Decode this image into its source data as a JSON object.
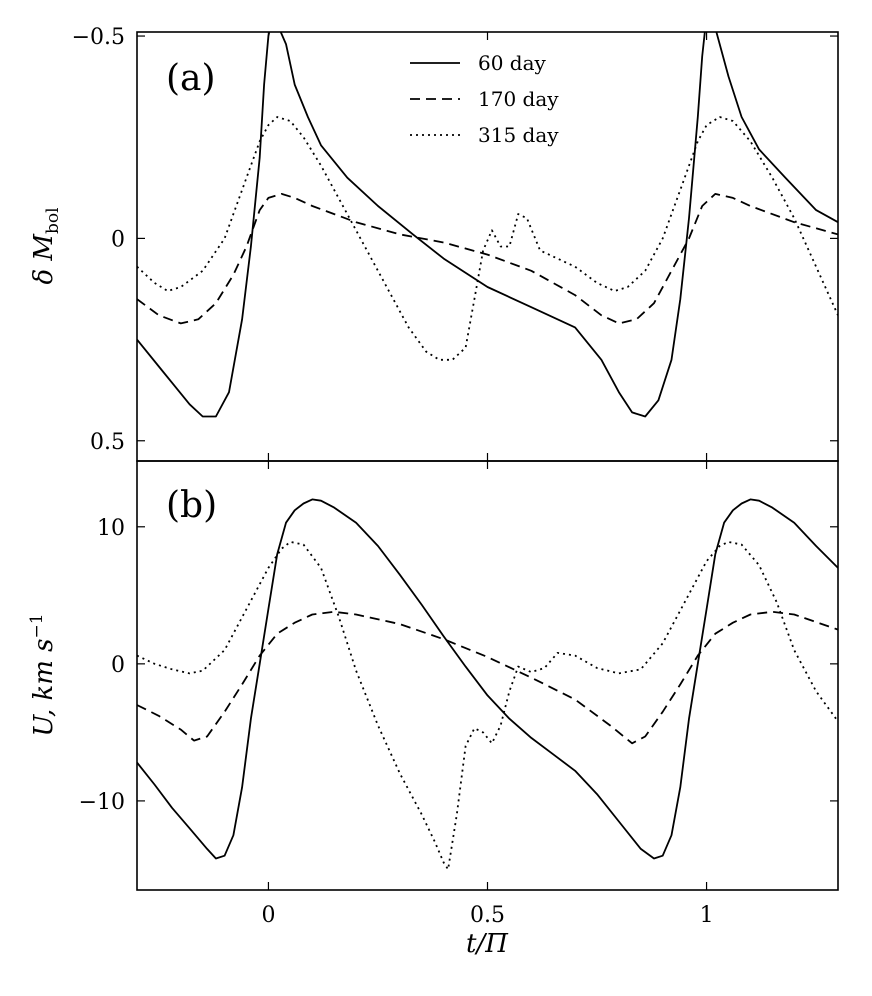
{
  "chart_data": [
    {
      "panel_label": "(a)",
      "type": "line",
      "ylabel_text": "δ M",
      "ylabel_sub": "bol",
      "xlim": [
        -0.3,
        1.3
      ],
      "ylim": [
        -0.51,
        0.55
      ],
      "y_inverted": true,
      "xticks": [
        0,
        0.5,
        1
      ],
      "xtick_labels": [
        "0",
        "0.5",
        "1"
      ],
      "yticks": [
        -0.5,
        0,
        0.5
      ],
      "ytick_labels": [
        "−0.5",
        "0",
        "0.5"
      ],
      "legend": {
        "position": "top-center",
        "entries": [
          "60 day",
          "170 day",
          "315 day"
        ]
      },
      "series": [
        {
          "name": "60 day",
          "style": "solid",
          "points": [
            [
              -0.3,
              0.25
            ],
            [
              -0.24,
              0.33
            ],
            [
              -0.18,
              0.41
            ],
            [
              -0.15,
              0.44
            ],
            [
              -0.12,
              0.44
            ],
            [
              -0.09,
              0.38
            ],
            [
              -0.06,
              0.2
            ],
            [
              -0.04,
              0.02
            ],
            [
              -0.02,
              -0.2
            ],
            [
              -0.01,
              -0.38
            ],
            [
              0.0,
              -0.5
            ],
            [
              0.01,
              -0.55
            ],
            [
              0.02,
              -0.53
            ],
            [
              0.04,
              -0.48
            ],
            [
              0.06,
              -0.38
            ],
            [
              0.09,
              -0.3
            ],
            [
              0.12,
              -0.23
            ],
            [
              0.18,
              -0.15
            ],
            [
              0.25,
              -0.08
            ],
            [
              0.33,
              -0.01
            ],
            [
              0.4,
              0.05
            ],
            [
              0.5,
              0.12
            ],
            [
              0.6,
              0.17
            ],
            [
              0.7,
              0.22
            ],
            [
              0.76,
              0.3
            ],
            [
              0.8,
              0.38
            ],
            [
              0.83,
              0.43
            ],
            [
              0.86,
              0.44
            ],
            [
              0.89,
              0.4
            ],
            [
              0.92,
              0.3
            ],
            [
              0.94,
              0.15
            ],
            [
              0.96,
              -0.05
            ],
            [
              0.98,
              -0.3
            ],
            [
              0.99,
              -0.45
            ],
            [
              1.0,
              -0.55
            ],
            [
              1.02,
              -0.52
            ],
            [
              1.05,
              -0.4
            ],
            [
              1.08,
              -0.3
            ],
            [
              1.12,
              -0.22
            ],
            [
              1.18,
              -0.15
            ],
            [
              1.25,
              -0.07
            ],
            [
              1.3,
              -0.04
            ]
          ]
        },
        {
          "name": "170 day",
          "style": "dashed",
          "points": [
            [
              -0.3,
              0.15
            ],
            [
              -0.25,
              0.19
            ],
            [
              -0.2,
              0.21
            ],
            [
              -0.16,
              0.2
            ],
            [
              -0.12,
              0.16
            ],
            [
              -0.08,
              0.09
            ],
            [
              -0.05,
              0.02
            ],
            [
              -0.02,
              -0.07
            ],
            [
              0.0,
              -0.1
            ],
            [
              0.03,
              -0.11
            ],
            [
              0.06,
              -0.1
            ],
            [
              0.1,
              -0.08
            ],
            [
              0.2,
              -0.04
            ],
            [
              0.3,
              -0.01
            ],
            [
              0.4,
              0.01
            ],
            [
              0.5,
              0.04
            ],
            [
              0.6,
              0.08
            ],
            [
              0.7,
              0.14
            ],
            [
              0.76,
              0.19
            ],
            [
              0.8,
              0.21
            ],
            [
              0.84,
              0.2
            ],
            [
              0.88,
              0.16
            ],
            [
              0.92,
              0.08
            ],
            [
              0.96,
              0.0
            ],
            [
              0.99,
              -0.08
            ],
            [
              1.02,
              -0.11
            ],
            [
              1.06,
              -0.1
            ],
            [
              1.1,
              -0.08
            ],
            [
              1.2,
              -0.04
            ],
            [
              1.3,
              -0.01
            ]
          ]
        },
        {
          "name": "315 day",
          "style": "dotted",
          "points": [
            [
              -0.3,
              0.07
            ],
            [
              -0.26,
              0.11
            ],
            [
              -0.23,
              0.13
            ],
            [
              -0.2,
              0.12
            ],
            [
              -0.15,
              0.08
            ],
            [
              -0.1,
              0.0
            ],
            [
              -0.05,
              -0.15
            ],
            [
              -0.02,
              -0.24
            ],
            [
              0.0,
              -0.28
            ],
            [
              0.02,
              -0.3
            ],
            [
              0.05,
              -0.29
            ],
            [
              0.08,
              -0.25
            ],
            [
              0.12,
              -0.18
            ],
            [
              0.18,
              -0.06
            ],
            [
              0.23,
              0.04
            ],
            [
              0.28,
              0.14
            ],
            [
              0.32,
              0.22
            ],
            [
              0.36,
              0.28
            ],
            [
              0.39,
              0.3
            ],
            [
              0.42,
              0.3
            ],
            [
              0.45,
              0.27
            ],
            [
              0.47,
              0.15
            ],
            [
              0.49,
              0.03
            ],
            [
              0.51,
              -0.02
            ],
            [
              0.53,
              0.02
            ],
            [
              0.55,
              0.02
            ],
            [
              0.57,
              -0.06
            ],
            [
              0.59,
              -0.05
            ],
            [
              0.62,
              0.03
            ],
            [
              0.66,
              0.05
            ],
            [
              0.7,
              0.07
            ],
            [
              0.75,
              0.11
            ],
            [
              0.79,
              0.13
            ],
            [
              0.82,
              0.12
            ],
            [
              0.86,
              0.08
            ],
            [
              0.9,
              0.0
            ],
            [
              0.95,
              -0.15
            ],
            [
              0.98,
              -0.24
            ],
            [
              1.0,
              -0.28
            ],
            [
              1.03,
              -0.3
            ],
            [
              1.06,
              -0.29
            ],
            [
              1.1,
              -0.24
            ],
            [
              1.15,
              -0.15
            ],
            [
              1.2,
              -0.05
            ],
            [
              1.25,
              0.07
            ],
            [
              1.3,
              0.19
            ]
          ]
        }
      ]
    },
    {
      "panel_label": "(b)",
      "type": "line",
      "ylabel_text": "U, km s",
      "ylabel_sup": "−1",
      "xlim": [
        -0.3,
        1.3
      ],
      "ylim": [
        -16.5,
        14.8
      ],
      "xticks": [
        0,
        0.5,
        1
      ],
      "xtick_labels": [
        "0",
        "0.5",
        "1"
      ],
      "yticks": [
        -10,
        0,
        10
      ],
      "ytick_labels": [
        "−10",
        "0",
        "10"
      ],
      "xlabel": "t/Π",
      "series": [
        {
          "name": "60 day",
          "style": "solid",
          "points": [
            [
              -0.3,
              -7.2
            ],
            [
              -0.26,
              -8.8
            ],
            [
              -0.22,
              -10.5
            ],
            [
              -0.18,
              -12.0
            ],
            [
              -0.14,
              -13.5
            ],
            [
              -0.12,
              -14.2
            ],
            [
              -0.1,
              -14.0
            ],
            [
              -0.08,
              -12.5
            ],
            [
              -0.06,
              -9.0
            ],
            [
              -0.04,
              -4.0
            ],
            [
              -0.02,
              0.0
            ],
            [
              0.0,
              4.0
            ],
            [
              0.02,
              8.0
            ],
            [
              0.04,
              10.3
            ],
            [
              0.06,
              11.2
            ],
            [
              0.08,
              11.7
            ],
            [
              0.1,
              12.0
            ],
            [
              0.12,
              11.9
            ],
            [
              0.15,
              11.4
            ],
            [
              0.2,
              10.3
            ],
            [
              0.25,
              8.6
            ],
            [
              0.3,
              6.5
            ],
            [
              0.35,
              4.3
            ],
            [
              0.4,
              2.0
            ],
            [
              0.45,
              -0.2
            ],
            [
              0.5,
              -2.3
            ],
            [
              0.55,
              -4.0
            ],
            [
              0.6,
              -5.4
            ],
            [
              0.65,
              -6.6
            ],
            [
              0.7,
              -7.8
            ],
            [
              0.75,
              -9.5
            ],
            [
              0.8,
              -11.5
            ],
            [
              0.85,
              -13.5
            ],
            [
              0.88,
              -14.2
            ],
            [
              0.9,
              -14.0
            ],
            [
              0.92,
              -12.5
            ],
            [
              0.94,
              -9.0
            ],
            [
              0.96,
              -4.0
            ],
            [
              0.98,
              0.0
            ],
            [
              1.0,
              4.0
            ],
            [
              1.02,
              8.0
            ],
            [
              1.04,
              10.3
            ],
            [
              1.06,
              11.2
            ],
            [
              1.08,
              11.7
            ],
            [
              1.1,
              12.0
            ],
            [
              1.12,
              11.9
            ],
            [
              1.15,
              11.4
            ],
            [
              1.2,
              10.3
            ],
            [
              1.25,
              8.6
            ],
            [
              1.3,
              7.0
            ]
          ]
        },
        {
          "name": "170 day",
          "style": "dashed",
          "points": [
            [
              -0.3,
              -3.0
            ],
            [
              -0.25,
              -3.8
            ],
            [
              -0.2,
              -4.8
            ],
            [
              -0.17,
              -5.6
            ],
            [
              -0.14,
              -5.3
            ],
            [
              -0.1,
              -3.5
            ],
            [
              -0.06,
              -1.5
            ],
            [
              -0.02,
              0.6
            ],
            [
              0.02,
              2.2
            ],
            [
              0.06,
              3.0
            ],
            [
              0.1,
              3.6
            ],
            [
              0.15,
              3.8
            ],
            [
              0.2,
              3.6
            ],
            [
              0.3,
              2.9
            ],
            [
              0.4,
              1.8
            ],
            [
              0.5,
              0.5
            ],
            [
              0.6,
              -1.0
            ],
            [
              0.7,
              -2.6
            ],
            [
              0.78,
              -4.5
            ],
            [
              0.83,
              -5.8
            ],
            [
              0.86,
              -5.3
            ],
            [
              0.9,
              -3.5
            ],
            [
              0.94,
              -1.5
            ],
            [
              0.98,
              0.6
            ],
            [
              1.02,
              2.2
            ],
            [
              1.06,
              3.0
            ],
            [
              1.1,
              3.6
            ],
            [
              1.15,
              3.8
            ],
            [
              1.2,
              3.6
            ],
            [
              1.3,
              2.5
            ]
          ]
        },
        {
          "name": "315 day",
          "style": "dotted",
          "points": [
            [
              -0.3,
              0.6
            ],
            [
              -0.26,
              0.0
            ],
            [
              -0.22,
              -0.4
            ],
            [
              -0.18,
              -0.7
            ],
            [
              -0.15,
              -0.5
            ],
            [
              -0.1,
              1.0
            ],
            [
              -0.05,
              4.0
            ],
            [
              0.0,
              7.0
            ],
            [
              0.03,
              8.4
            ],
            [
              0.05,
              8.9
            ],
            [
              0.08,
              8.7
            ],
            [
              0.12,
              7.0
            ],
            [
              0.16,
              3.5
            ],
            [
              0.2,
              -0.5
            ],
            [
              0.25,
              -4.5
            ],
            [
              0.3,
              -8.0
            ],
            [
              0.35,
              -11.0
            ],
            [
              0.38,
              -13.0
            ],
            [
              0.4,
              -14.5
            ],
            [
              0.41,
              -15.0
            ],
            [
              0.43,
              -11.0
            ],
            [
              0.45,
              -6.0
            ],
            [
              0.47,
              -4.7
            ],
            [
              0.49,
              -5.0
            ],
            [
              0.51,
              -5.8
            ],
            [
              0.53,
              -4.5
            ],
            [
              0.55,
              -2.0
            ],
            [
              0.57,
              -0.2
            ],
            [
              0.6,
              -0.6
            ],
            [
              0.63,
              -0.3
            ],
            [
              0.66,
              0.8
            ],
            [
              0.7,
              0.6
            ],
            [
              0.75,
              -0.3
            ],
            [
              0.8,
              -0.7
            ],
            [
              0.85,
              -0.4
            ],
            [
              0.9,
              1.5
            ],
            [
              0.95,
              4.5
            ],
            [
              1.0,
              7.5
            ],
            [
              1.03,
              8.6
            ],
            [
              1.05,
              8.9
            ],
            [
              1.08,
              8.7
            ],
            [
              1.12,
              7.2
            ],
            [
              1.16,
              4.5
            ],
            [
              1.2,
              1.0
            ],
            [
              1.25,
              -2.0
            ],
            [
              1.3,
              -4.2
            ]
          ]
        }
      ]
    }
  ]
}
